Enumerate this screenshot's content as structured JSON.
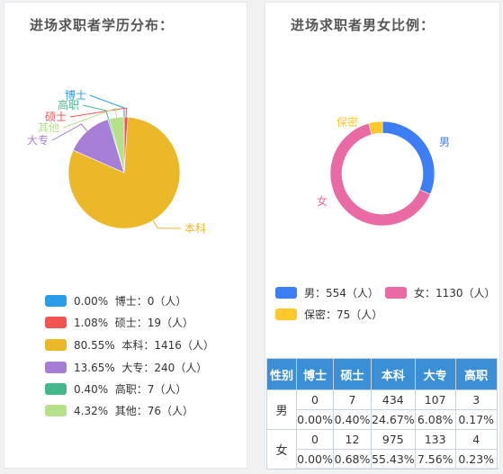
{
  "edu": {
    "title": "进场求职者学历分布：",
    "chart_data": {
      "type": "pie",
      "categories": [
        "博士",
        "硕士",
        "本科",
        "大专",
        "高职",
        "其他"
      ],
      "values": [
        0,
        19,
        1416,
        240,
        7,
        76
      ],
      "percents": [
        "0.00%",
        "1.08%",
        "80.55%",
        "13.65%",
        "0.40%",
        "4.32%"
      ],
      "colors": [
        "#2b9de8",
        "#f25454",
        "#ebb82a",
        "#a77ed6",
        "#45b88b",
        "#b6e08a"
      ]
    },
    "legend": [
      {
        "pct": "0.00%",
        "text": "博士：0（人）"
      },
      {
        "pct": "1.08%",
        "text": "硕士：19（人）"
      },
      {
        "pct": "80.55%",
        "text": "本科：1416（人）"
      },
      {
        "pct": "13.65%",
        "text": "大专：240（人）"
      },
      {
        "pct": "0.40%",
        "text": "高职：7（人）"
      },
      {
        "pct": "4.32%",
        "text": "其他：76（人）"
      }
    ]
  },
  "gender": {
    "title": "进场求职者男女比例：",
    "chart_data": {
      "type": "pie",
      "categories": [
        "男",
        "女",
        "保密"
      ],
      "values": [
        554,
        1130,
        75
      ],
      "colors": [
        "#3e7ef5",
        "#ea6aa4",
        "#fdc82a"
      ]
    },
    "legend": [
      {
        "text": "男：554（人）"
      },
      {
        "text": "女：1130（人）"
      },
      {
        "text": "保密：75（人）"
      }
    ]
  },
  "table": {
    "chart_data": {
      "type": "table",
      "headers": [
        "性别",
        "博士",
        "硕士",
        "本科",
        "大专",
        "高职"
      ],
      "rows": [
        {
          "gender": "男",
          "counts": [
            "0",
            "7",
            "434",
            "107",
            "3"
          ],
          "pcts": [
            "0.00%",
            "0.40%",
            "24.67%",
            "6.08%",
            "0.17%"
          ]
        },
        {
          "gender": "女",
          "counts": [
            "0",
            "12",
            "975",
            "133",
            "4"
          ],
          "pcts": [
            "0.00%",
            "0.68%",
            "55.43%",
            "7.56%",
            "0.23%"
          ]
        }
      ]
    }
  }
}
